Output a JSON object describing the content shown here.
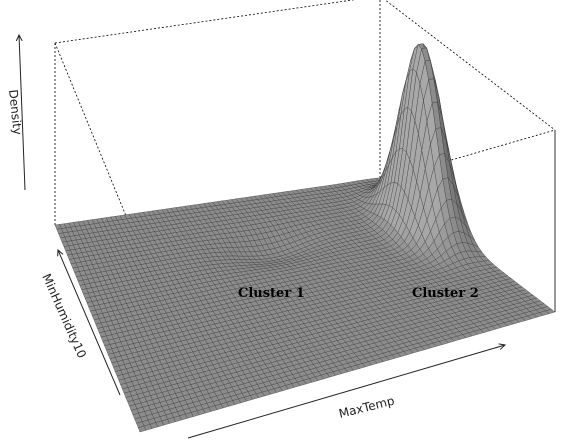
{
  "chart_data": {
    "type": "surface",
    "title": "",
    "xlabel": "MaxTemp",
    "ylabel": "MinHumidity10",
    "zlabel": "Density",
    "box": "dotted",
    "grid": true,
    "surface_color": "#8c8c8c",
    "mesh_color": "#3a3a3a",
    "annotations": [
      {
        "text": "Cluster 1"
      },
      {
        "text": "Cluster 2"
      }
    ],
    "peaks": [
      {
        "label": "Cluster 1",
        "relative_height": 0.0
      },
      {
        "label": "Cluster 2",
        "relative_height": 1.0
      }
    ]
  }
}
